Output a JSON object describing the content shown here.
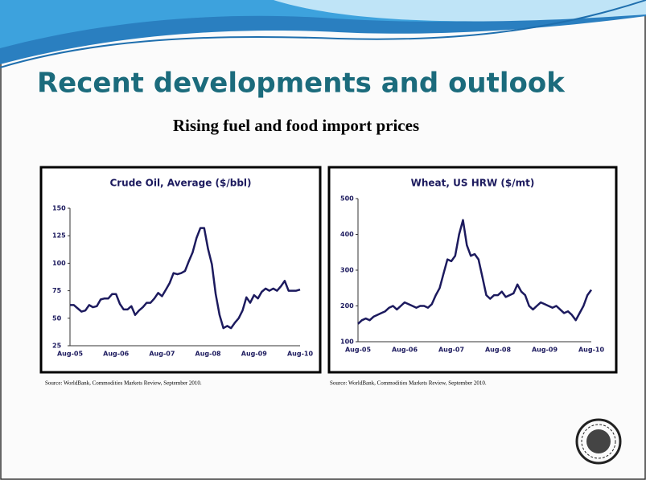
{
  "slide": {
    "title": "Recent developments and outlook",
    "subtitle": "Rising fuel and food import prices"
  },
  "chart_data": [
    {
      "type": "line",
      "title": "Crude Oil, Average ($/bbl)",
      "color": "#1c1a5e",
      "categories": [
        "Aug-05",
        null,
        null,
        null,
        null,
        null,
        null,
        null,
        null,
        null,
        null,
        null,
        "Aug-06",
        null,
        null,
        null,
        null,
        null,
        null,
        null,
        null,
        null,
        null,
        null,
        "Aug-07",
        null,
        null,
        null,
        null,
        null,
        null,
        null,
        null,
        null,
        null,
        null,
        "Aug-08",
        null,
        null,
        null,
        null,
        null,
        null,
        null,
        null,
        null,
        null,
        null,
        "Aug-09",
        null,
        null,
        null,
        null,
        null,
        null,
        null,
        null,
        null,
        null,
        null,
        "Aug-10"
      ],
      "values": [
        62,
        62,
        59,
        56,
        57,
        62,
        60,
        61,
        67,
        68,
        68,
        72,
        72,
        63,
        58,
        58,
        61,
        53,
        57,
        60,
        64,
        64,
        68,
        73,
        70,
        76,
        82,
        91,
        90,
        91,
        93,
        102,
        110,
        123,
        132,
        132,
        113,
        99,
        72,
        53,
        41,
        43,
        41,
        46,
        50,
        57,
        69,
        64,
        71,
        68,
        74,
        77,
        75,
        77,
        75,
        79,
        84,
        75,
        75,
        75,
        76
      ],
      "ylim": [
        25,
        150
      ],
      "yticks": [
        25,
        50,
        75,
        100,
        125,
        150
      ],
      "source": "Source: WorldBank, Commodities Markets Review, September 2010."
    },
    {
      "type": "line",
      "title": "Wheat, US HRW ($/mt)",
      "color": "#1c1a5e",
      "categories": [
        "Aug-05",
        null,
        null,
        null,
        null,
        null,
        null,
        null,
        null,
        null,
        null,
        null,
        "Aug-06",
        null,
        null,
        null,
        null,
        null,
        null,
        null,
        null,
        null,
        null,
        null,
        "Aug-07",
        null,
        null,
        null,
        null,
        null,
        null,
        null,
        null,
        null,
        null,
        null,
        "Aug-08",
        null,
        null,
        null,
        null,
        null,
        null,
        null,
        null,
        null,
        null,
        null,
        "Aug-09",
        null,
        null,
        null,
        null,
        null,
        null,
        null,
        null,
        null,
        null,
        null,
        "Aug-10"
      ],
      "values": [
        150,
        160,
        165,
        160,
        170,
        175,
        180,
        185,
        195,
        200,
        190,
        200,
        210,
        205,
        200,
        195,
        200,
        200,
        195,
        205,
        230,
        250,
        290,
        330,
        325,
        340,
        400,
        440,
        370,
        340,
        345,
        330,
        280,
        230,
        220,
        230,
        230,
        240,
        225,
        230,
        235,
        260,
        240,
        230,
        200,
        190,
        200,
        210,
        205,
        200,
        195,
        200,
        190,
        180,
        185,
        175,
        160,
        180,
        200,
        230,
        245
      ],
      "ylim": [
        100,
        500
      ],
      "yticks": [
        100,
        200,
        300,
        400,
        500
      ],
      "source": "Source: WorldBank, Commodities Markets Review, September 2010."
    }
  ]
}
